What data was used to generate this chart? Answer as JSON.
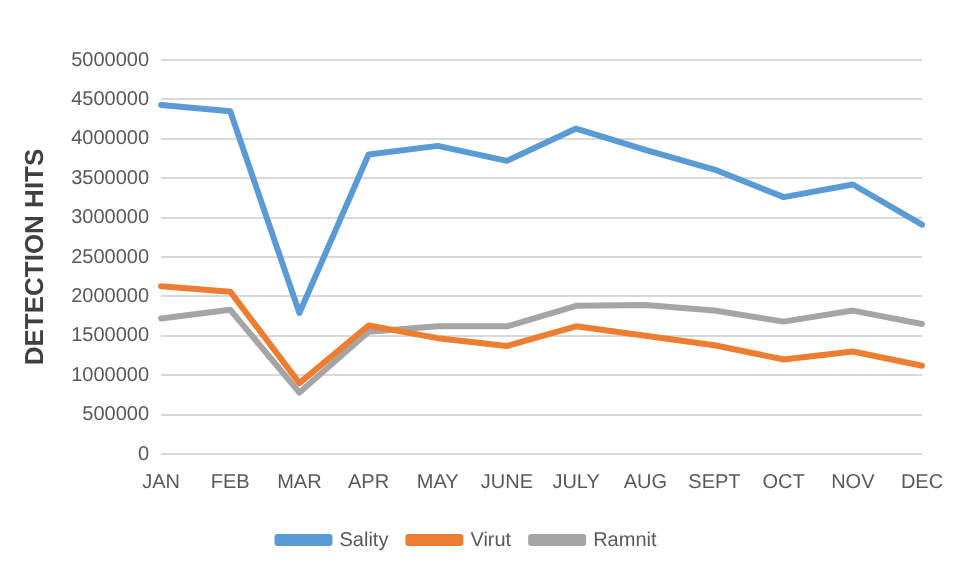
{
  "chart_data": {
    "type": "line",
    "ylabel": "DETECTION HITS",
    "categories": [
      "JAN",
      "FEB",
      "MAR",
      "APR",
      "MAY",
      "JUNE",
      "JULY",
      "AUG",
      "SEPT",
      "OCT",
      "NOV",
      "DEC"
    ],
    "series": [
      {
        "name": "Sality",
        "color": "#5b9bd5",
        "values": [
          4430000,
          4350000,
          1790000,
          3800000,
          3910000,
          3720000,
          4130000,
          3860000,
          3610000,
          3260000,
          3420000,
          2910000
        ]
      },
      {
        "name": "Virut",
        "color": "#ed7d31",
        "values": [
          2130000,
          2060000,
          900000,
          1630000,
          1470000,
          1370000,
          1620000,
          1500000,
          1380000,
          1200000,
          1300000,
          1120000
        ]
      },
      {
        "name": "Ramnit",
        "color": "#a5a5a5",
        "values": [
          1720000,
          1830000,
          780000,
          1550000,
          1620000,
          1620000,
          1880000,
          1890000,
          1820000,
          1680000,
          1820000,
          1650000
        ]
      }
    ],
    "ylim": [
      0,
      5000000
    ],
    "yticks": [
      0,
      500000,
      1000000,
      1500000,
      2000000,
      2500000,
      3000000,
      3500000,
      4000000,
      4500000,
      5000000
    ],
    "grid": "y",
    "legend": "bottom",
    "marker": "none",
    "line_style": "solid"
  }
}
